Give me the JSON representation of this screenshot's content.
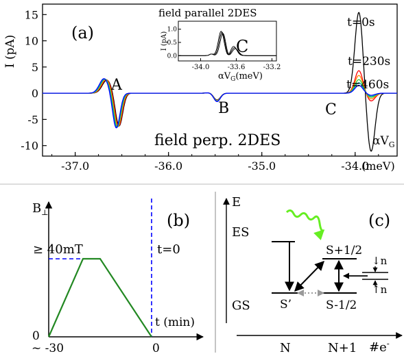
{
  "colors": {
    "t0": "#0000ff",
    "t230": "#ff0000",
    "t460": "#33cc33",
    "trace_black": "#000000",
    "trace_orange": "#ff8800",
    "trace_teal": "#00aaaa",
    "gs_es_arrow": "#000000",
    "dashed_blue": "#0000ff",
    "ramp_green": "#228822",
    "photon_green": "#66ee22",
    "dotted_gray": "#999999"
  },
  "chart_data": [
    {
      "type": "line",
      "panel_label": "(a)",
      "ylabel": "I (pA)",
      "xlabel": "αV_G",
      "x_unit_label": "(meV)",
      "xlim": [
        -37.35,
        -33.55
      ],
      "ylim": [
        -12,
        17
      ],
      "x_ticks": [
        -37.0,
        -36.0,
        -35.0,
        -34.0
      ],
      "x_tick_labels": [
        "-37.0",
        "-36.0",
        "-35.0",
        "-34.0"
      ],
      "y_ticks": [
        15,
        10,
        5,
        0,
        -5,
        -10
      ],
      "y_tick_labels": [
        "15",
        "10",
        "5",
        "0",
        "-5",
        "-10"
      ],
      "annotations": {
        "peak_a": "A",
        "peak_b": "B",
        "peak_c": "C",
        "caption": "field perp. 2DES",
        "xaxis_name": "αV",
        "xaxis_sub": "G"
      },
      "legend": [
        {
          "name": "t=0s",
          "color_key": "t0"
        },
        {
          "name": "t=230s",
          "color_key": "t230"
        },
        {
          "name": "t=460s",
          "color_key": "t460"
        }
      ],
      "series": [
        {
          "color_key": "trace_black",
          "peak_a": [
            2.5,
            -6.3
          ],
          "peak_b": [
            0.1,
            -1.3
          ],
          "peak_c": [
            15.5,
            -11.2
          ]
        },
        {
          "color_key": "t230",
          "peak_a": [
            2.6,
            -6.4
          ],
          "peak_b": [
            0.1,
            -1.4
          ],
          "peak_c": [
            4.3,
            -1.5
          ]
        },
        {
          "color_key": "trace_orange",
          "peak_a": [
            2.6,
            -6.4
          ],
          "peak_b": [
            0.1,
            -1.4
          ],
          "peak_c": [
            3.4,
            -1.1
          ]
        },
        {
          "color_key": "t460",
          "peak_a": [
            2.7,
            -6.5
          ],
          "peak_b": [
            0.1,
            -1.5
          ],
          "peak_c": [
            2.6,
            -0.8
          ]
        },
        {
          "color_key": "trace_teal",
          "peak_a": [
            2.7,
            -6.6
          ],
          "peak_b": [
            0.1,
            -1.5
          ],
          "peak_c": [
            2.0,
            -0.6
          ]
        },
        {
          "color_key": "t0",
          "peak_a": [
            2.8,
            -6.7
          ],
          "peak_b": [
            0.1,
            -1.6
          ],
          "peak_c": [
            1.5,
            -0.4
          ]
        }
      ]
    },
    {
      "type": "line",
      "title": "field parallel 2DES",
      "ylabel": "I (pA)",
      "xlabel": "αV_G (meV)",
      "xaxis_name": "αV",
      "xaxis_sub": "G",
      "xaxis_unit": "(meV)",
      "annotation": "C",
      "xlim": [
        -34.25,
        -33.15
      ],
      "ylim": [
        -0.2,
        1.3
      ],
      "x_ticks": [
        -34.0,
        -33.6,
        -33.2
      ],
      "x_tick_labels": [
        "-34.0",
        "-33.6",
        "-33.2"
      ],
      "y_ticks": [
        1.0,
        0.5,
        0.0
      ],
      "y_tick_labels": [
        "1.0",
        "0.5",
        "0.0"
      ],
      "series": [
        {
          "color_key": "trace_black",
          "peaks": [
            {
              "x": -33.77,
              "y": 0.92
            },
            {
              "x": -33.63,
              "y": 0.35
            }
          ]
        },
        {
          "color_key": "trace_black",
          "peaks": [
            {
              "x": -33.76,
              "y": 0.88
            },
            {
              "x": -33.62,
              "y": 0.3
            }
          ]
        },
        {
          "color_key": "trace_black",
          "peaks": [
            {
              "x": -33.75,
              "y": 0.84
            },
            {
              "x": -33.61,
              "y": 0.26
            }
          ]
        }
      ]
    },
    {
      "type": "line",
      "panel_label": "(b)",
      "ylabel_main": "B",
      "ylabel_sub": "⊥",
      "xlabel": "t (min)",
      "x_tick_labels": {
        "start": "~ -30",
        "zero": "0"
      },
      "y_tick_labels": {
        "zero": "0"
      },
      "level_label": "≥ 40mT",
      "t0_label": "t=0",
      "x": [
        -30,
        -20,
        -15,
        0
      ],
      "values": [
        0,
        40,
        40,
        0
      ]
    }
  ],
  "diagram_c": {
    "panel_label": "(c)",
    "yaxis": "E",
    "xaxis": "#e",
    "xaxis_sup": "-",
    "x_labels": [
      "N",
      "N+1"
    ],
    "levels": {
      "es": "ES",
      "gs": "GS",
      "s_prime": "S’",
      "s_plus": "S+1/2",
      "s_minus": "S-1/2"
    },
    "spin_down": "↓n",
    "spin_up": "↑n"
  }
}
